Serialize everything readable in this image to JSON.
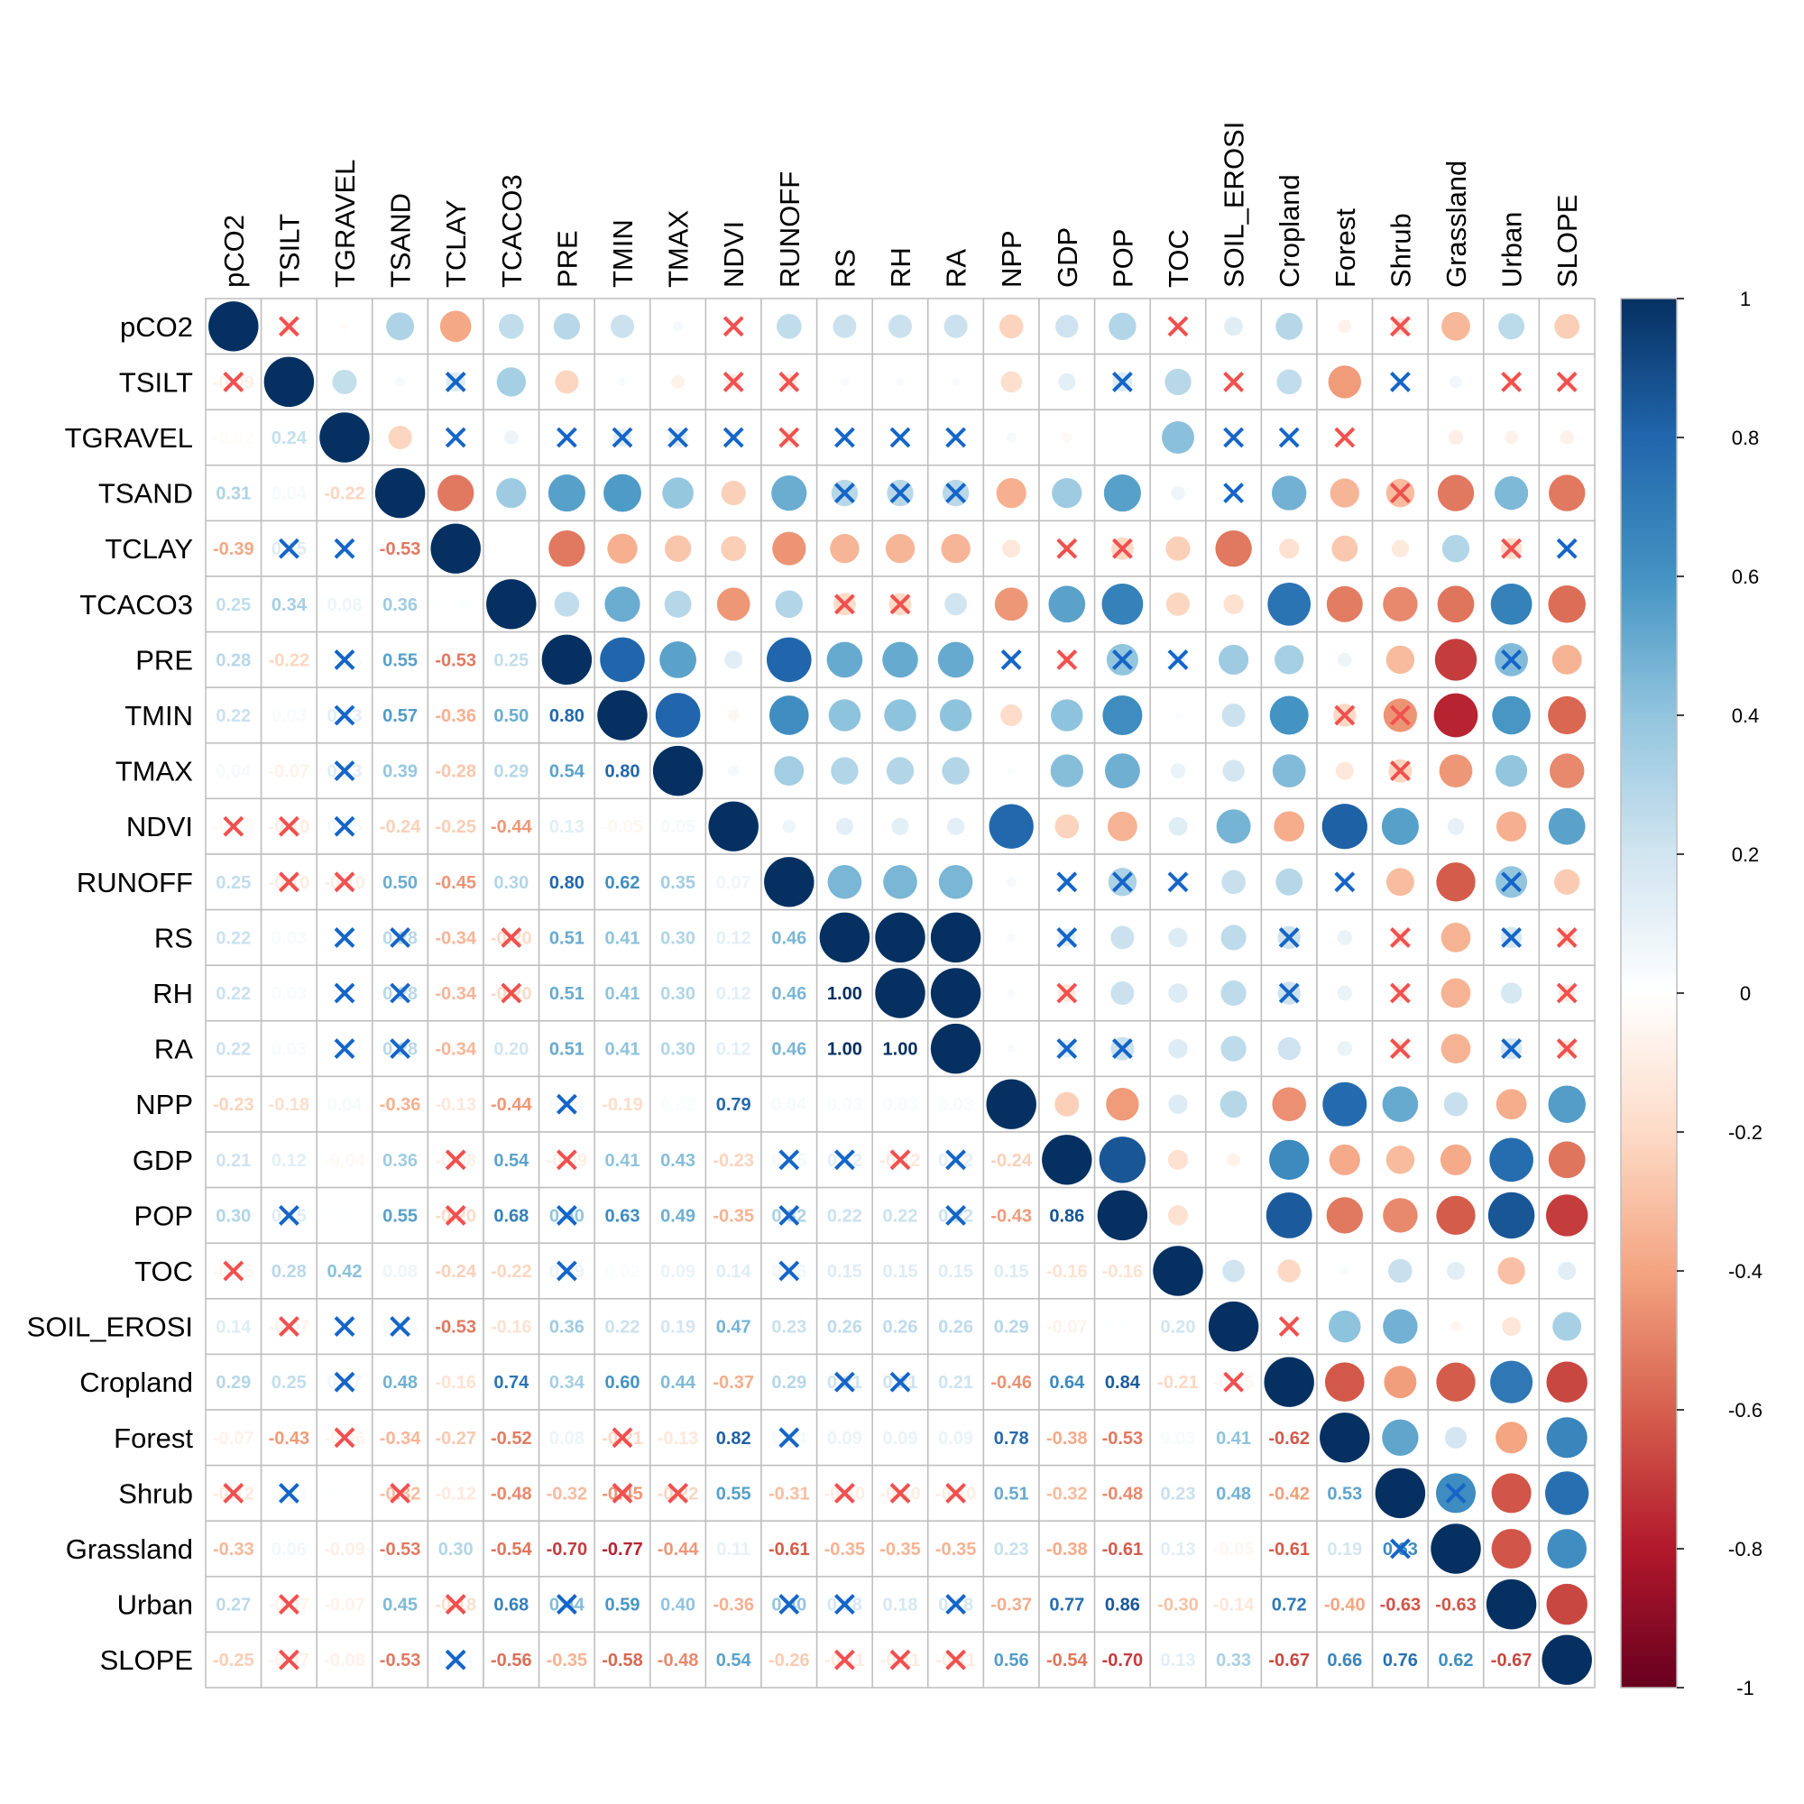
{
  "chart_data": {
    "type": "heatmap",
    "subtype": "correlation-matrix-mixed (upper: circles, lower: numbers, X = not significant)",
    "variables": [
      "pCO2",
      "TSILT",
      "TGRAVEL",
      "TSAND",
      "TCLAY",
      "TCACO3",
      "PRE",
      "TMIN",
      "TMAX",
      "NDVI",
      "RUNOFF",
      "RS",
      "RH",
      "RA",
      "NPP",
      "GDP",
      "POP",
      "TOC",
      "SOIL_EROSI",
      "Cropland",
      "Forest",
      "Shrub",
      "Grassland",
      "Urban",
      "SLOPE"
    ],
    "lower_triangle": [
      [],
      [
        -0.09
      ],
      [
        -0.02,
        0.24
      ],
      [
        0.31,
        0.04,
        -0.22
      ],
      [
        -0.39,
        0.15,
        0.01,
        -0.53
      ],
      [
        0.25,
        0.34,
        0.08,
        0.36,
        0.01
      ],
      [
        0.28,
        -0.22,
        0.04,
        0.55,
        -0.53,
        0.25
      ],
      [
        0.22,
        0.03,
        0.13,
        0.57,
        -0.36,
        0.5,
        0.8
      ],
      [
        0.04,
        -0.07,
        0.13,
        0.39,
        -0.28,
        0.29,
        0.54,
        0.8
      ],
      [
        -0.03,
        -0.1,
        0.05,
        -0.24,
        -0.25,
        -0.44,
        0.13,
        -0.05,
        0.05
      ],
      [
        0.25,
        -0.1,
        -0.1,
        0.5,
        -0.45,
        0.3,
        0.8,
        0.62,
        0.35,
        0.07
      ],
      [
        0.22,
        0.03,
        0.02,
        0.28,
        -0.34,
        -0.2,
        0.51,
        0.41,
        0.3,
        0.12,
        0.46
      ],
      [
        0.22,
        0.03,
        0.02,
        0.28,
        -0.34,
        -0.2,
        0.51,
        0.41,
        0.3,
        0.12,
        0.46,
        1.0
      ],
      [
        0.22,
        0.03,
        0.02,
        0.28,
        -0.34,
        0.2,
        0.51,
        0.41,
        0.3,
        0.12,
        0.46,
        1.0,
        1.0
      ],
      [
        -0.23,
        -0.18,
        0.04,
        -0.36,
        -0.13,
        -0.44,
        0.04,
        -0.19,
        0.02,
        0.79,
        0.04,
        0.03,
        0.03,
        0.03
      ],
      [
        0.21,
        0.12,
        -0.04,
        0.36,
        -0.08,
        0.54,
        -0.09,
        0.41,
        0.43,
        -0.23,
        0.05,
        0.12,
        -0.12,
        0.12,
        -0.24
      ],
      [
        0.3,
        0.15,
        0.01,
        0.55,
        -0.2,
        0.68,
        0.4,
        0.63,
        0.49,
        -0.35,
        0.32,
        0.22,
        0.22,
        0.22,
        -0.43,
        0.86
      ],
      [
        -0.05,
        0.28,
        0.42,
        0.08,
        -0.24,
        -0.22,
        0.09,
        0.02,
        0.09,
        0.14,
        0.06,
        0.15,
        0.15,
        0.15,
        0.15,
        -0.16,
        -0.16
      ],
      [
        0.14,
        -0.07,
        0.01,
        0.04,
        -0.53,
        -0.16,
        0.36,
        0.22,
        0.19,
        0.47,
        0.23,
        0.26,
        0.26,
        0.26,
        0.29,
        -0.07,
        0.01,
        0.2
      ],
      [
        0.29,
        0.25,
        0.07,
        0.48,
        -0.16,
        0.74,
        0.34,
        0.6,
        0.44,
        -0.37,
        0.29,
        0.21,
        0.21,
        0.21,
        -0.46,
        0.64,
        0.84,
        -0.21,
        -0.05
      ],
      [
        -0.07,
        -0.43,
        -0.06,
        -0.34,
        -0.27,
        -0.52,
        0.08,
        -0.21,
        -0.13,
        0.82,
        0.04,
        0.09,
        0.09,
        0.09,
        0.78,
        -0.38,
        -0.53,
        0.03,
        0.41,
        -0.62
      ],
      [
        -0.12,
        0.03,
        0.01,
        -0.32,
        -0.12,
        -0.48,
        -0.32,
        -0.45,
        -0.22,
        0.55,
        -0.31,
        -0.1,
        -0.1,
        -0.1,
        0.51,
        -0.32,
        -0.48,
        0.23,
        0.48,
        -0.42,
        0.53
      ],
      [
        -0.33,
        0.06,
        -0.09,
        -0.53,
        0.3,
        -0.54,
        -0.7,
        -0.77,
        -0.44,
        0.11,
        -0.61,
        -0.35,
        -0.35,
        -0.35,
        0.23,
        -0.38,
        -0.61,
        0.13,
        -0.05,
        -0.61,
        0.19,
        0.63
      ],
      [
        0.27,
        -0.07,
        -0.07,
        0.45,
        -0.18,
        0.68,
        0.44,
        0.59,
        0.4,
        -0.36,
        0.4,
        0.18,
        0.18,
        0.18,
        -0.37,
        0.77,
        0.86,
        -0.3,
        -0.14,
        0.72,
        -0.4,
        -0.63,
        -0.63
      ],
      [
        -0.25,
        -0.07,
        -0.08,
        -0.53,
        0.04,
        -0.56,
        -0.35,
        -0.58,
        -0.48,
        0.54,
        -0.26,
        -0.11,
        -0.11,
        -0.11,
        0.56,
        -0.54,
        -0.7,
        0.13,
        0.33,
        -0.67,
        0.66,
        0.76,
        0.62,
        -0.67
      ]
    ],
    "not_significant_pairs": [
      [
        "pCO2",
        "TSILT"
      ],
      [
        "pCO2",
        "NDVI"
      ],
      [
        "pCO2",
        "Shrub"
      ],
      [
        "pCO2",
        "TOC"
      ],
      [
        "TSILT",
        "TCLAY"
      ],
      [
        "TSILT",
        "NDVI"
      ],
      [
        "TSILT",
        "RUNOFF"
      ],
      [
        "TSILT",
        "POP"
      ],
      [
        "TSILT",
        "SOIL_EROSI"
      ],
      [
        "TSILT",
        "Shrub"
      ],
      [
        "TSILT",
        "Urban"
      ],
      [
        "TSILT",
        "SLOPE"
      ],
      [
        "TGRAVEL",
        "TCLAY"
      ],
      [
        "TGRAVEL",
        "PRE"
      ],
      [
        "TGRAVEL",
        "TMIN"
      ],
      [
        "TGRAVEL",
        "TMAX"
      ],
      [
        "TGRAVEL",
        "NDVI"
      ],
      [
        "TGRAVEL",
        "RUNOFF"
      ],
      [
        "TGRAVEL",
        "SOIL_EROSI"
      ],
      [
        "TGRAVEL",
        "Cropland"
      ],
      [
        "TGRAVEL",
        "Forest"
      ],
      [
        "TGRAVEL",
        "RS"
      ],
      [
        "TGRAVEL",
        "RH"
      ],
      [
        "TGRAVEL",
        "RA"
      ],
      [
        "TSAND",
        "RS"
      ],
      [
        "TSAND",
        "RH"
      ],
      [
        "TSAND",
        "RA"
      ],
      [
        "TSAND",
        "SOIL_EROSI"
      ],
      [
        "TSAND",
        "Shrub"
      ],
      [
        "TCLAY",
        "GDP"
      ],
      [
        "TCLAY",
        "POP"
      ],
      [
        "TCLAY",
        "Urban"
      ],
      [
        "TCLAY",
        "SLOPE"
      ],
      [
        "TCACO3",
        "RS"
      ],
      [
        "TCACO3",
        "RH"
      ],
      [
        "PRE",
        "NPP"
      ],
      [
        "PRE",
        "GDP"
      ],
      [
        "PRE",
        "POP"
      ],
      [
        "PRE",
        "TOC"
      ],
      [
        "PRE",
        "Urban"
      ],
      [
        "TMIN",
        "Forest"
      ],
      [
        "TMIN",
        "Shrub"
      ],
      [
        "TMAX",
        "Shrub"
      ],
      [
        "RUNOFF",
        "GDP"
      ],
      [
        "RUNOFF",
        "POP"
      ],
      [
        "RUNOFF",
        "TOC"
      ],
      [
        "RUNOFF",
        "Forest"
      ],
      [
        "RUNOFF",
        "Urban"
      ],
      [
        "RS",
        "GDP"
      ],
      [
        "RS",
        "Cropland"
      ],
      [
        "RS",
        "Shrub"
      ],
      [
        "RS",
        "Urban"
      ],
      [
        "RS",
        "SLOPE"
      ],
      [
        "RH",
        "GDP"
      ],
      [
        "RH",
        "Cropland"
      ],
      [
        "RH",
        "Shrub"
      ],
      [
        "RH",
        "SLOPE"
      ],
      [
        "RA",
        "GDP"
      ],
      [
        "RA",
        "POP"
      ],
      [
        "RA",
        "Shrub"
      ],
      [
        "RA",
        "Urban"
      ],
      [
        "RA",
        "SLOPE"
      ],
      [
        "SOIL_EROSI",
        "Cropland"
      ],
      [
        "Shrub",
        "Grassland"
      ]
    ],
    "colorbar": {
      "ticks": [
        "1",
        "0.8",
        "0.6",
        "0.4",
        "0.2",
        "0",
        "-0.2",
        "-0.4",
        "-0.6",
        "-0.8",
        "-1"
      ],
      "range": [
        -1,
        1
      ],
      "palette": [
        "#67001F",
        "#B2182B",
        "#D6604D",
        "#F4A582",
        "#FDDBC7",
        "#FFFFFF",
        "#D1E5F0",
        "#92C5DE",
        "#4393C3",
        "#2166AC",
        "#053061"
      ]
    },
    "insignificant_mark_colors": {
      "positive": "#1565C8",
      "negative": "#F0504F"
    },
    "grid_color": "#BEBEBE"
  }
}
